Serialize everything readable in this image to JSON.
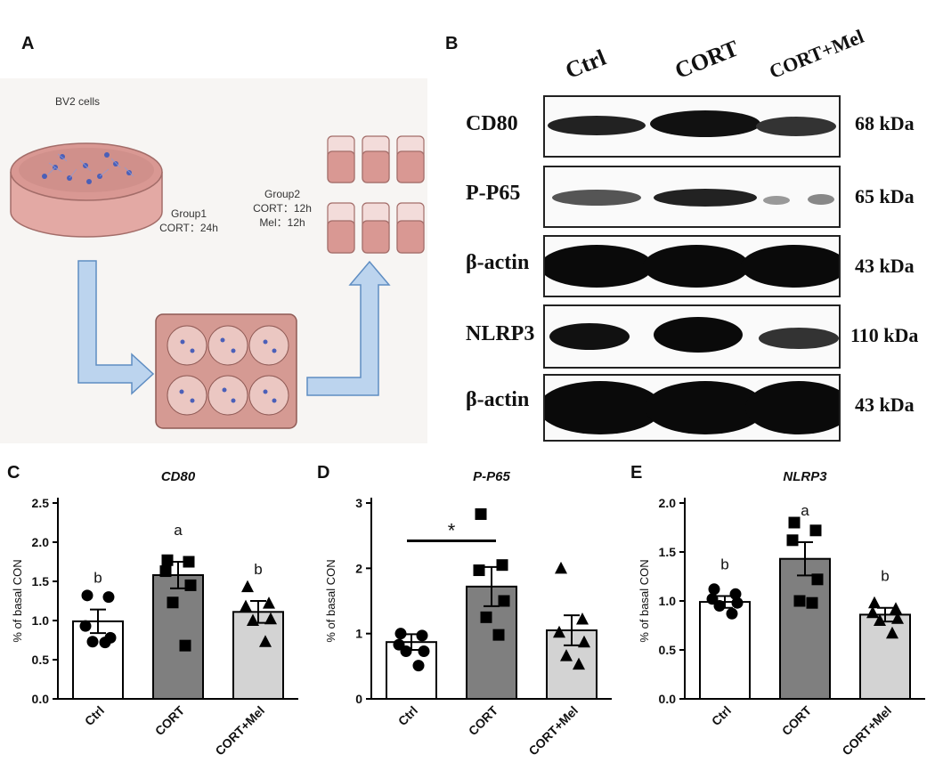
{
  "panels": {
    "a": "A",
    "b": "B",
    "c": "C",
    "d": "D",
    "e": "E"
  },
  "schematic": {
    "cells_label": "BV2 cells",
    "group1_line1": "Group1",
    "group1_line2": "CORT：24h",
    "group2_line1": "Group2",
    "group2_line2": "CORT：12h",
    "group2_line3": "Mel：12h"
  },
  "western_blot": {
    "lanes": [
      "Ctrl",
      "CORT",
      "CORT+Mel"
    ],
    "rows": [
      {
        "label": "CD80",
        "kda": "68 kDa"
      },
      {
        "label": "P-P65",
        "kda": "65 kDa"
      },
      {
        "label": "β-actin",
        "kda": "43 kDa"
      },
      {
        "label": "NLRP3",
        "kda": "110 kDa"
      },
      {
        "label": "β-actin",
        "kda": "43 kDa"
      }
    ]
  },
  "chart_data": [
    {
      "type": "bar",
      "title": "CD80",
      "ylabel": "% of basal CON",
      "categories": [
        "Ctrl",
        "CORT",
        "CORT+Mel"
      ],
      "values": [
        0.99,
        1.58,
        1.11
      ],
      "sem": [
        0.15,
        0.17,
        0.14
      ],
      "points": [
        [
          1.32,
          1.3,
          0.93,
          0.78,
          0.73,
          0.72
        ],
        [
          1.77,
          1.75,
          1.63,
          1.45,
          1.23,
          0.68
        ],
        [
          1.43,
          1.22,
          1.18,
          1.02,
          1.0,
          0.73
        ]
      ],
      "letters": [
        "b",
        "a",
        "b"
      ],
      "ylim": [
        0,
        2.5
      ],
      "yticks": [
        "0.0",
        "0.5",
        "1.0",
        "1.5",
        "2.0",
        "2.5"
      ],
      "colors": [
        "#ffffff",
        "#7f7f7f",
        "#d3d3d3"
      ]
    },
    {
      "type": "bar",
      "title": "P-P65",
      "ylabel": "% of basal CON",
      "categories": [
        "Ctrl",
        "CORT",
        "CORT+Mel"
      ],
      "values": [
        0.87,
        1.72,
        1.05
      ],
      "sem": [
        0.12,
        0.3,
        0.23
      ],
      "points": [
        [
          1.0,
          0.97,
          0.83,
          0.73,
          0.73,
          0.51
        ],
        [
          2.83,
          2.05,
          1.97,
          1.5,
          1.25,
          0.98
        ],
        [
          2.0,
          1.22,
          1.02,
          0.87,
          0.66,
          0.53
        ]
      ],
      "significance": "*",
      "ylim": [
        0,
        3
      ],
      "yticks": [
        "0",
        "1",
        "2",
        "3"
      ],
      "colors": [
        "#ffffff",
        "#7f7f7f",
        "#d3d3d3"
      ]
    },
    {
      "type": "bar",
      "title": "NLRP3",
      "ylabel": "% of basal CON",
      "categories": [
        "Ctrl",
        "CORT",
        "CORT+Mel"
      ],
      "values": [
        0.99,
        1.43,
        0.86
      ],
      "sem": [
        0.06,
        0.17,
        0.07
      ],
      "points": [
        [
          1.12,
          1.07,
          1.02,
          0.98,
          0.95,
          0.87
        ],
        [
          1.8,
          1.72,
          1.62,
          1.22,
          1.0,
          0.98
        ],
        [
          0.98,
          0.92,
          0.88,
          0.82,
          0.8,
          0.67
        ]
      ],
      "letters": [
        "b",
        "a",
        "b"
      ],
      "ylim": [
        0,
        2.0
      ],
      "yticks": [
        "0.0",
        "0.5",
        "1.0",
        "1.5",
        "2.0"
      ],
      "colors": [
        "#ffffff",
        "#7f7f7f",
        "#d3d3d3"
      ]
    }
  ]
}
